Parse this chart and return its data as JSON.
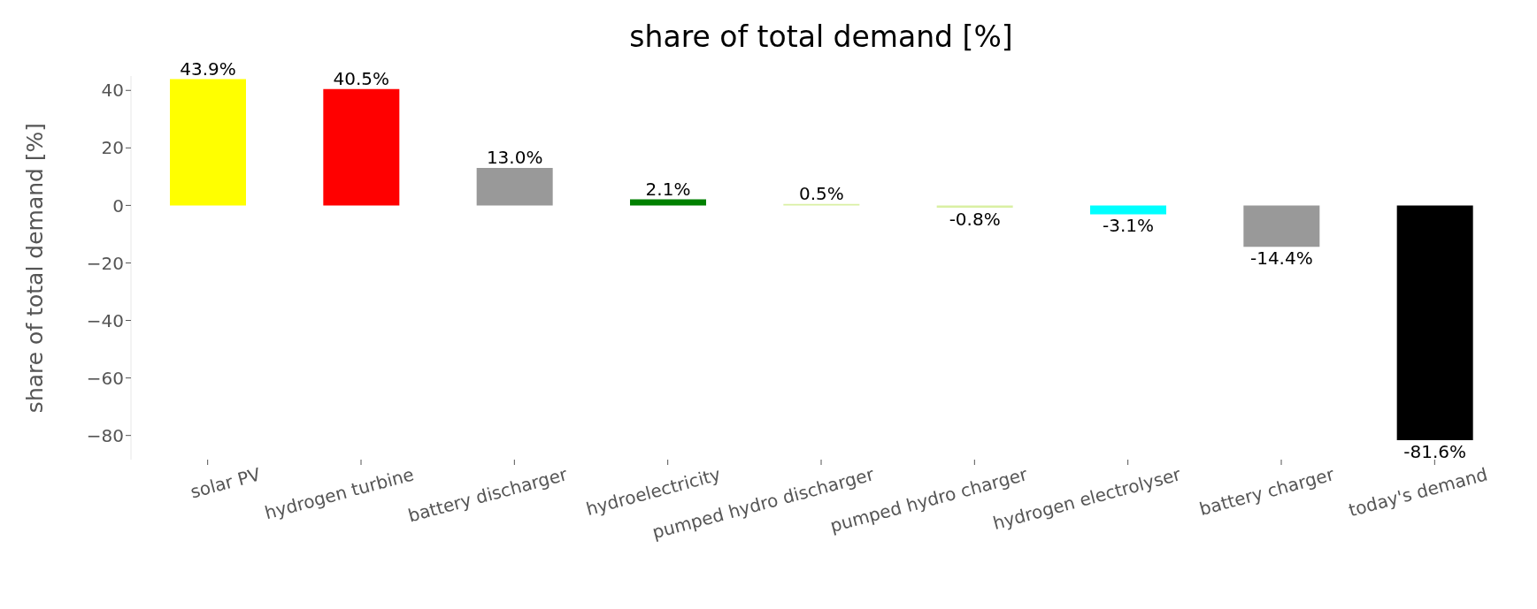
{
  "chart_data": {
    "type": "bar",
    "title": "share of total demand [%]",
    "ylabel": "share of total demand [%]",
    "categories": [
      "solar PV",
      "hydrogen turbine",
      "battery discharger",
      "hydroelectricity",
      "pumped hydro discharger",
      "pumped hydro charger",
      "hydrogen electrolyser",
      "battery charger",
      "today's demand"
    ],
    "values": [
      43.9,
      40.5,
      13.0,
      2.1,
      0.5,
      -0.8,
      -3.1,
      -14.4,
      -81.6
    ],
    "colors": [
      "#ffff00",
      "#ff0000",
      "#999999",
      "#008000",
      "#d9f0a3",
      "#d9f0a3",
      "#00ffff",
      "#999999",
      "#000000"
    ],
    "value_labels": [
      "43.9%",
      "40.5%",
      "13.0%",
      "2.1%",
      "0.5%",
      "-0.8%",
      "-3.1%",
      "-14.4%",
      "-81.6%"
    ],
    "ylim": [
      -88.4,
      45
    ],
    "yticks": [
      -80,
      -60,
      -40,
      -20,
      0,
      20,
      40
    ],
    "grid": false,
    "legend": false
  }
}
